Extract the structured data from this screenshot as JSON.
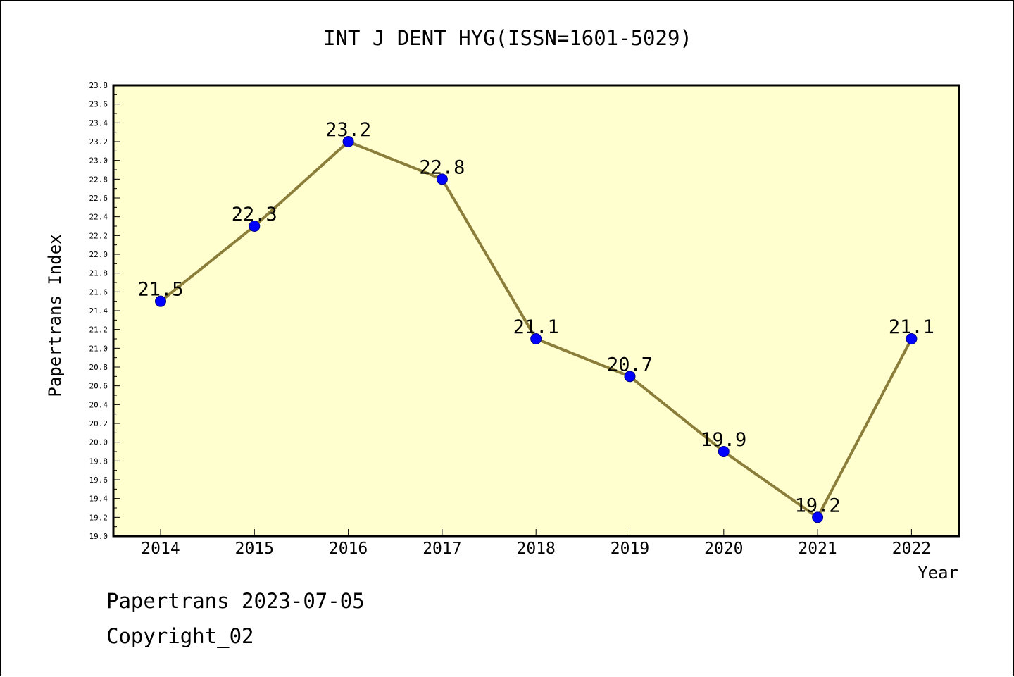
{
  "chart_data": {
    "type": "line",
    "title": "INT J DENT HYG(ISSN=1601-5029)",
    "xlabel": "Year",
    "ylabel": "Papertrans Index",
    "categories": [
      "2014",
      "2015",
      "2016",
      "2017",
      "2018",
      "2019",
      "2020",
      "2021",
      "2022"
    ],
    "series": [
      {
        "values": [
          21.5,
          22.3,
          23.2,
          22.8,
          21.1,
          20.7,
          19.9,
          19.2,
          21.1
        ]
      }
    ],
    "data_labels": [
      "21.5",
      "22.3",
      "23.2",
      "22.8",
      "21.1",
      "20.7",
      "19.9",
      "19.2",
      "21.1"
    ],
    "ylim": [
      19.0,
      23.8
    ],
    "yticks": [
      "19.0",
      "19.2",
      "19.4",
      "19.6",
      "19.8",
      "20.0",
      "20.2",
      "20.4",
      "20.6",
      "20.8",
      "21.0",
      "21.2",
      "21.4",
      "21.6",
      "21.8",
      "22.0",
      "22.2",
      "22.4",
      "22.6",
      "22.8",
      "23.0",
      "23.2",
      "23.4",
      "23.6",
      "23.8"
    ],
    "grid": false,
    "legend": "none",
    "colors": {
      "plot_background": "#ffffd0",
      "line": "#8b7d3a",
      "marker": "#0000ff"
    }
  },
  "footer": {
    "line1": "Papertrans 2023-07-05",
    "line2": "Copyright_02"
  }
}
